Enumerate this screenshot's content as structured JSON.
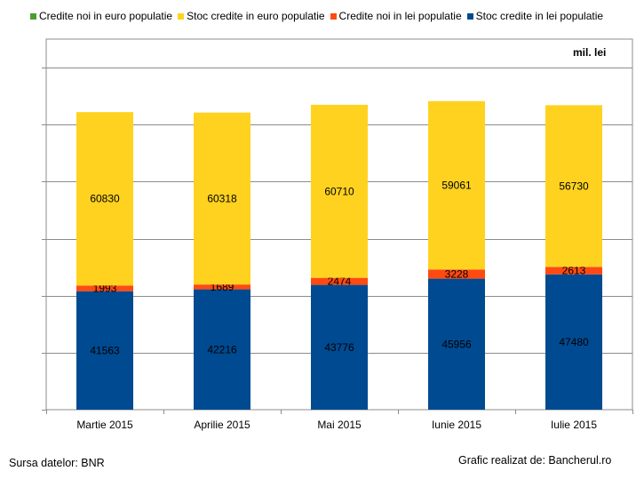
{
  "legend": {
    "items": [
      {
        "label": "Credite noi in euro populatie",
        "color": "#4a9e2f"
      },
      {
        "label": "Stoc credite in euro populatie",
        "color": "#ffd21f"
      },
      {
        "label": "Credite noi in lei populatie",
        "color": "#ff4a12"
      },
      {
        "label": "Stoc credite in lei populatie",
        "color": "#004a91"
      }
    ]
  },
  "unit_label": "mil. lei",
  "footer": {
    "source": "Sursa datelor: BNR",
    "credit": "Grafic realizat de: Bancherul.ro"
  },
  "chart_data": {
    "type": "bar",
    "stacked": true,
    "categories": [
      "Martie 2015",
      "Aprilie 2015",
      "Mai 2015",
      "Iunie 2015",
      "Iulie 2015"
    ],
    "ylim": [
      0,
      130000
    ],
    "grid": true,
    "legend_position": "top",
    "series": [
      {
        "name": "Stoc credite in lei populatie",
        "color": "#004a91",
        "values": [
          41563,
          42216,
          43776,
          45956,
          47480
        ]
      },
      {
        "name": "Credite noi in lei populatie",
        "color": "#ff4a12",
        "values": [
          1993,
          1689,
          2474,
          3228,
          2613
        ]
      },
      {
        "name": "Stoc credite in euro populatie",
        "color": "#ffd21f",
        "values": [
          60830,
          60318,
          60710,
          59061,
          56730
        ]
      },
      {
        "name": "Credite noi in euro populatie",
        "color": "#4a9e2f",
        "values": [
          0,
          0,
          0,
          0,
          0
        ]
      }
    ]
  }
}
